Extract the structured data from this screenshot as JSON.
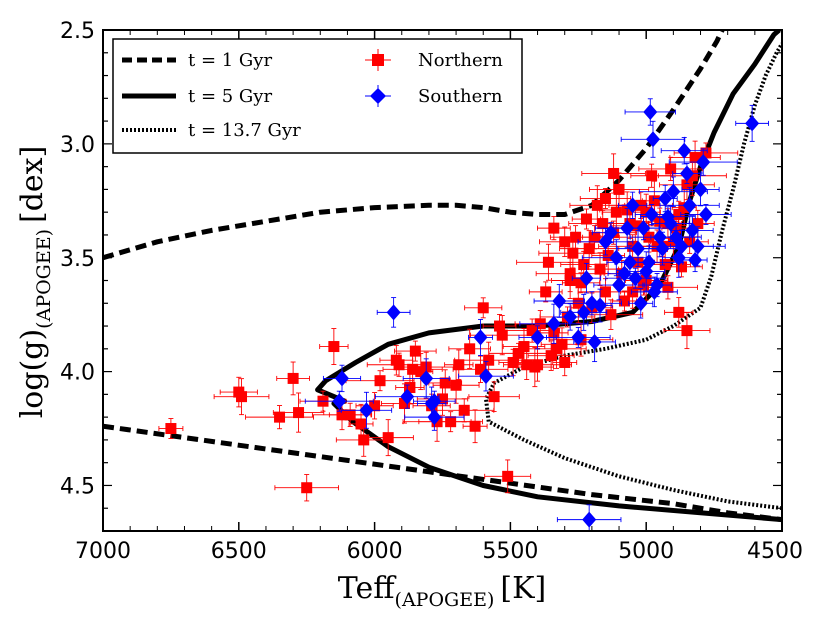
{
  "chart_data": {
    "type": "scatter",
    "xlabel": "Teff",
    "xlabel_sub": "(APOGEE)",
    "xlabel_unit": "[K]",
    "ylabel": "log(g)",
    "ylabel_sub": "(APOGEE)",
    "ylabel_unit": "[dex]",
    "xlim": [
      7000,
      4500
    ],
    "ylim": [
      4.7,
      2.5
    ],
    "x_ticks": [
      7000,
      6500,
      6000,
      5500,
      5000,
      4500
    ],
    "y_ticks": [
      2.5,
      3.0,
      3.5,
      4.0,
      4.5
    ],
    "x_tick_labels": [
      "7000",
      "6500",
      "6000",
      "5500",
      "5000",
      "4500"
    ],
    "y_tick_labels": [
      "2.5",
      "3.0",
      "3.5",
      "4.0",
      "4.5"
    ],
    "legend_position": "top-left",
    "legend": {
      "iso1": "t = 1 Gyr",
      "iso5": "t = 5 Gyr",
      "iso13": "t = 13.7 Gyr",
      "north": "Northern",
      "south": "Southern"
    },
    "isochrones": [
      {
        "name": "t = 1 Gyr",
        "style": "dashed",
        "segments": [
          [
            [
              7000,
              3.5
            ],
            [
              6800,
              3.43
            ],
            [
              6600,
              3.38
            ],
            [
              6400,
              3.34
            ],
            [
              6200,
              3.3
            ],
            [
              6000,
              3.28
            ],
            [
              5800,
              3.27
            ],
            [
              5700,
              3.27
            ],
            [
              5600,
              3.28
            ],
            [
              5500,
              3.3
            ],
            [
              5400,
              3.31
            ],
            [
              5300,
              3.31
            ],
            [
              5200,
              3.27
            ],
            [
              5100,
              3.16
            ],
            [
              5000,
              3.02
            ],
            [
              4900,
              2.85
            ],
            [
              4800,
              2.67
            ],
            [
              4740,
              2.55
            ],
            [
              4720,
              2.5
            ]
          ],
          [
            [
              7000,
              4.24
            ],
            [
              6700,
              4.29
            ],
            [
              6400,
              4.34
            ],
            [
              6100,
              4.39
            ],
            [
              5800,
              4.44
            ],
            [
              5500,
              4.49
            ],
            [
              5200,
              4.54
            ],
            [
              4900,
              4.58
            ],
            [
              4700,
              4.62
            ],
            [
              4500,
              4.65
            ]
          ]
        ]
      },
      {
        "name": "t = 5 Gyr",
        "style": "solid",
        "segments": [
          [
            [
              4500,
              4.65
            ],
            [
              4800,
              4.62
            ],
            [
              5100,
              4.59
            ],
            [
              5400,
              4.55
            ],
            [
              5600,
              4.5
            ],
            [
              5800,
              4.42
            ],
            [
              5950,
              4.33
            ],
            [
              6080,
              4.22
            ],
            [
              6150,
              4.14
            ],
            [
              6110,
              4.13
            ],
            [
              6150,
              4.11
            ],
            [
              6210,
              4.08
            ],
            [
              6180,
              4.04
            ],
            [
              6070,
              3.96
            ],
            [
              5950,
              3.88
            ],
            [
              5800,
              3.83
            ],
            [
              5600,
              3.8
            ],
            [
              5400,
              3.8
            ],
            [
              5200,
              3.78
            ],
            [
              5050,
              3.74
            ],
            [
              4950,
              3.62
            ],
            [
              4880,
              3.45
            ],
            [
              4840,
              3.25
            ],
            [
              4800,
              3.1
            ],
            [
              4750,
              2.95
            ],
            [
              4680,
              2.78
            ],
            [
              4600,
              2.65
            ],
            [
              4530,
              2.52
            ],
            [
              4510,
              2.5
            ]
          ]
        ]
      },
      {
        "name": "t = 13.7 Gyr",
        "style": "dotted",
        "segments": [
          [
            [
              4500,
              4.6
            ],
            [
              4700,
              4.57
            ],
            [
              4900,
              4.52
            ],
            [
              5100,
              4.46
            ],
            [
              5300,
              4.38
            ],
            [
              5450,
              4.3
            ],
            [
              5580,
              4.22
            ],
            [
              5590,
              4.12
            ],
            [
              5560,
              4.05
            ],
            [
              5450,
              3.98
            ],
            [
              5300,
              3.93
            ],
            [
              5150,
              3.9
            ],
            [
              5000,
              3.86
            ],
            [
              4900,
              3.8
            ],
            [
              4800,
              3.72
            ],
            [
              4760,
              3.58
            ],
            [
              4720,
              3.38
            ],
            [
              4680,
              3.2
            ],
            [
              4640,
              3.0
            ],
            [
              4600,
              2.83
            ],
            [
              4560,
              2.7
            ],
            [
              4520,
              2.6
            ],
            [
              4500,
              2.56
            ]
          ]
        ]
      }
    ],
    "series": [
      {
        "name": "Northern",
        "marker": "square",
        "color": "#ff0000",
        "points": [
          [
            6750,
            4.25
          ],
          [
            6490,
            4.11
          ],
          [
            6500,
            4.09
          ],
          [
            6350,
            4.2
          ],
          [
            6280,
            4.18
          ],
          [
            6300,
            4.03
          ],
          [
            6250,
            4.51
          ],
          [
            6190,
            4.13
          ],
          [
            6150,
            3.89
          ],
          [
            6120,
            4.19
          ],
          [
            6090,
            4.19
          ],
          [
            6050,
            4.23
          ],
          [
            6040,
            4.3
          ],
          [
            6000,
            4.15
          ],
          [
            5980,
            4.04
          ],
          [
            5950,
            4.29
          ],
          [
            5920,
            3.95
          ],
          [
            5910,
            3.97
          ],
          [
            5890,
            4.14
          ],
          [
            5870,
            4.07
          ],
          [
            5860,
            3.99
          ],
          [
            5850,
            3.91
          ],
          [
            5830,
            4.0
          ],
          [
            5810,
            3.98
          ],
          [
            5790,
            4.15
          ],
          [
            5770,
            4.22
          ],
          [
            5750,
            4.12
          ],
          [
            5740,
            4.05
          ],
          [
            5720,
            4.22
          ],
          [
            5700,
            4.06
          ],
          [
            5690,
            3.97
          ],
          [
            5670,
            4.17
          ],
          [
            5650,
            3.9
          ],
          [
            5630,
            4.24
          ],
          [
            5610,
            3.99
          ],
          [
            5600,
            3.72
          ],
          [
            5580,
            3.95
          ],
          [
            5560,
            4.11
          ],
          [
            5540,
            3.8
          ],
          [
            5530,
            3.84
          ],
          [
            5510,
            4.46
          ],
          [
            5490,
            3.96
          ],
          [
            5470,
            3.92
          ],
          [
            5450,
            3.89
          ],
          [
            5440,
            3.97
          ],
          [
            5420,
            3.82
          ],
          [
            5410,
            3.98
          ],
          [
            5400,
            3.97
          ],
          [
            5390,
            3.79
          ],
          [
            5370,
            3.65
          ],
          [
            5360,
            3.52
          ],
          [
            5350,
            3.93
          ],
          [
            5340,
            3.83
          ],
          [
            5330,
            3.9
          ],
          [
            5310,
            3.88
          ],
          [
            5300,
            3.96
          ],
          [
            5290,
            3.76
          ],
          [
            5280,
            3.6
          ],
          [
            5270,
            3.48
          ],
          [
            5260,
            3.41
          ],
          [
            5250,
            3.7
          ],
          [
            5240,
            3.86
          ],
          [
            5230,
            3.53
          ],
          [
            5220,
            3.33
          ],
          [
            5210,
            3.46
          ],
          [
            5200,
            3.72
          ],
          [
            5190,
            3.41
          ],
          [
            5180,
            3.27
          ],
          [
            5170,
            3.55
          ],
          [
            5160,
            3.35
          ],
          [
            5150,
            3.24
          ],
          [
            5140,
            3.49
          ],
          [
            5130,
            3.75
          ],
          [
            5120,
            3.39
          ],
          [
            5110,
            3.3
          ],
          [
            5100,
            3.2
          ],
          [
            5090,
            3.57
          ],
          [
            5080,
            3.69
          ],
          [
            5070,
            3.29
          ],
          [
            5060,
            3.35
          ],
          [
            5050,
            3.45
          ],
          [
            5040,
            3.36
          ],
          [
            5030,
            3.52
          ],
          [
            5020,
            3.27
          ],
          [
            5010,
            3.62
          ],
          [
            5000,
            3.3
          ],
          [
            4990,
            3.41
          ],
          [
            4980,
            3.14
          ],
          [
            4970,
            3.25
          ],
          [
            4960,
            3.45
          ],
          [
            4950,
            3.34
          ],
          [
            4940,
            3.45
          ],
          [
            4930,
            3.53
          ],
          [
            4920,
            3.35
          ],
          [
            4910,
            3.11
          ],
          [
            4900,
            3.43
          ],
          [
            4890,
            3.37
          ],
          [
            4880,
            3.31
          ],
          [
            4870,
            3.54
          ],
          [
            4860,
            3.28
          ],
          [
            4850,
            3.18
          ],
          [
            4840,
            3.43
          ],
          [
            4830,
            3.14
          ],
          [
            4820,
            3.06
          ],
          [
            4810,
            3.35
          ],
          [
            4780,
            3.04
          ],
          [
            4850,
            3.82
          ],
          [
            4880,
            3.74
          ],
          [
            4920,
            3.63
          ],
          [
            5000,
            3.6
          ],
          [
            5050,
            3.65
          ],
          [
            5150,
            3.65
          ],
          [
            5240,
            3.61
          ],
          [
            5280,
            3.57
          ],
          [
            5300,
            3.43
          ],
          [
            5340,
            3.37
          ],
          [
            5120,
            3.13
          ]
        ]
      },
      {
        "name": "Southern",
        "marker": "diamond",
        "color": "#0000ff",
        "points": [
          [
            6120,
            4.03
          ],
          [
            6130,
            4.13
          ],
          [
            6030,
            4.17
          ],
          [
            5930,
            3.74
          ],
          [
            5880,
            4.11
          ],
          [
            5810,
            4.03
          ],
          [
            5790,
            4.14
          ],
          [
            5780,
            4.2
          ],
          [
            5780,
            4.13
          ],
          [
            5610,
            3.85
          ],
          [
            5590,
            4.02
          ],
          [
            5400,
            3.85
          ],
          [
            5340,
            3.79
          ],
          [
            5320,
            3.69
          ],
          [
            5280,
            3.76
          ],
          [
            5250,
            3.85
          ],
          [
            5230,
            3.74
          ],
          [
            5220,
            3.59
          ],
          [
            5200,
            3.7
          ],
          [
            5190,
            3.87
          ],
          [
            5170,
            3.71
          ],
          [
            5150,
            3.43
          ],
          [
            5130,
            3.39
          ],
          [
            5110,
            3.5
          ],
          [
            5100,
            3.62
          ],
          [
            5080,
            3.57
          ],
          [
            5070,
            3.37
          ],
          [
            5060,
            3.52
          ],
          [
            5050,
            3.27
          ],
          [
            5040,
            3.59
          ],
          [
            5030,
            3.46
          ],
          [
            5020,
            3.7
          ],
          [
            5010,
            3.37
          ],
          [
            5000,
            3.56
          ],
          [
            4990,
            3.52
          ],
          [
            4985,
            2.86
          ],
          [
            4980,
            3.31
          ],
          [
            4975,
            2.98
          ],
          [
            4970,
            3.65
          ],
          [
            4960,
            3.62
          ],
          [
            4950,
            3.41
          ],
          [
            4940,
            3.46
          ],
          [
            4930,
            3.24
          ],
          [
            4920,
            3.32
          ],
          [
            4910,
            3.35
          ],
          [
            4900,
            3.21
          ],
          [
            4890,
            3.41
          ],
          [
            4880,
            3.5
          ],
          [
            4870,
            3.45
          ],
          [
            4860,
            3.03
          ],
          [
            4850,
            3.13
          ],
          [
            4840,
            3.27
          ],
          [
            4830,
            3.38
          ],
          [
            4820,
            3.51
          ],
          [
            4810,
            3.45
          ],
          [
            4800,
            3.2
          ],
          [
            4790,
            3.08
          ],
          [
            4780,
            3.31
          ],
          [
            4610,
            2.91
          ],
          [
            5210,
            4.65
          ]
        ]
      }
    ]
  }
}
